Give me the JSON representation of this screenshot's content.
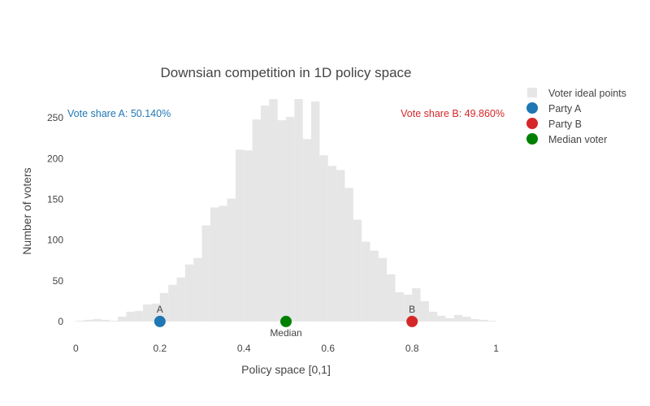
{
  "chart_data": {
    "type": "bar",
    "title": "Downsian competition in 1D policy space",
    "xlabel": "Policy space [0,1]",
    "ylabel": "Number of voters",
    "xlim": [
      -0.02,
      1.02
    ],
    "ylim": [
      -22,
      285
    ],
    "x_ticks": [
      0,
      0.2,
      0.4,
      0.6,
      0.8,
      1
    ],
    "x_tick_labels": [
      "0",
      "0.2",
      "0.4",
      "0.6",
      "0.8",
      "1"
    ],
    "y_ticks": [
      0,
      50,
      100,
      150,
      200,
      250
    ],
    "y_tick_labels": [
      "0",
      "50",
      "100",
      "150",
      "200",
      "250"
    ],
    "grid": false,
    "legend_position": "top-right",
    "histogram": {
      "name": "Voter ideal points",
      "color": "#e6e6e6",
      "bin_width": 0.02,
      "bin_starts": [
        0,
        0.02,
        0.04,
        0.06,
        0.08,
        0.1,
        0.12,
        0.14,
        0.16,
        0.18,
        0.2,
        0.22,
        0.24,
        0.26,
        0.28,
        0.3,
        0.32,
        0.34,
        0.36,
        0.38,
        0.4,
        0.42,
        0.44,
        0.46,
        0.48,
        0.5,
        0.52,
        0.54,
        0.56,
        0.58,
        0.6,
        0.62,
        0.64,
        0.66,
        0.68,
        0.7,
        0.72,
        0.74,
        0.76,
        0.78,
        0.8,
        0.82,
        0.84,
        0.86,
        0.88,
        0.9,
        0.92,
        0.94,
        0.96,
        0.98
      ],
      "counts": [
        1,
        2,
        3,
        2,
        1,
        6,
        12,
        13,
        21,
        22,
        35,
        45,
        54,
        70,
        78,
        118,
        140,
        142,
        151,
        211,
        210,
        248,
        265,
        273,
        247,
        251,
        273,
        224,
        270,
        204,
        191,
        186,
        164,
        125,
        98,
        87,
        78,
        58,
        36,
        33,
        41,
        25,
        12,
        7,
        4,
        8,
        6,
        3,
        2,
        1
      ]
    },
    "points": [
      {
        "name": "Party A",
        "x": 0.2,
        "y": 0,
        "color": "#1f77b4",
        "label": "A"
      },
      {
        "name": "Party B",
        "x": 0.8,
        "y": 0,
        "color": "#d62728",
        "label": "B"
      },
      {
        "name": "Median voter",
        "x": 0.5,
        "y": 0,
        "color": "#008000",
        "label": "Median"
      }
    ],
    "annotations": [
      {
        "text": "Vote share A: 50.140%",
        "color": "#1f77b4"
      },
      {
        "text": "Vote share B: 49.860%",
        "color": "#d62728"
      }
    ],
    "legend": [
      "Voter ideal points",
      "Party A",
      "Party B",
      "Median voter"
    ]
  }
}
